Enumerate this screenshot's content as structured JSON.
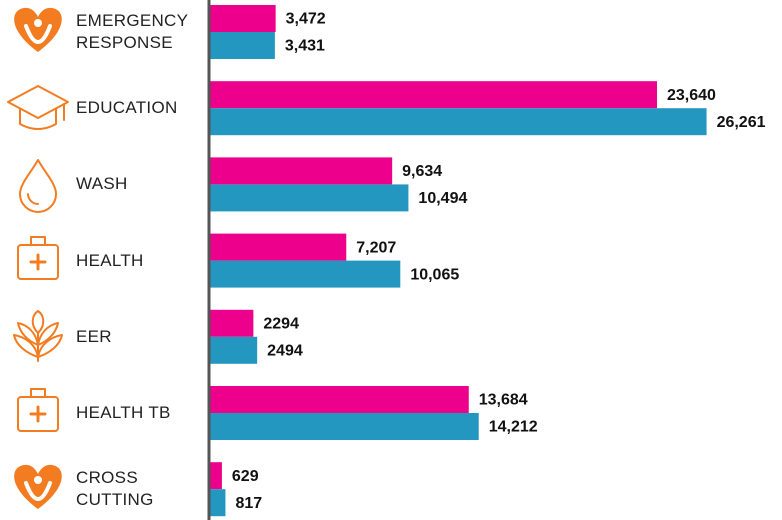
{
  "chart_data": {
    "type": "bar",
    "orientation": "horizontal",
    "categories": [
      "EMERGENCY RESPONSE",
      "EDUCATION",
      "WASH",
      "HEALTH",
      "EER",
      "HEALTH TB",
      "CROSS CUTTING"
    ],
    "series": [
      {
        "color": "#ec008c",
        "values": [
          3472,
          23640,
          9634,
          7207,
          2294,
          13684,
          629
        ],
        "value_labels": [
          "3,472",
          "23,640",
          "9,634",
          "7,207",
          "2294",
          "13,684",
          "629"
        ]
      },
      {
        "color": "#2497c1",
        "values": [
          3431,
          26261,
          10494,
          10065,
          2494,
          14212,
          817
        ],
        "value_labels": [
          "3,431",
          "26,261",
          "10,494",
          "10,065",
          "2494",
          "14,212",
          "817"
        ]
      }
    ],
    "xlim": [
      0,
      27500
    ]
  }
}
